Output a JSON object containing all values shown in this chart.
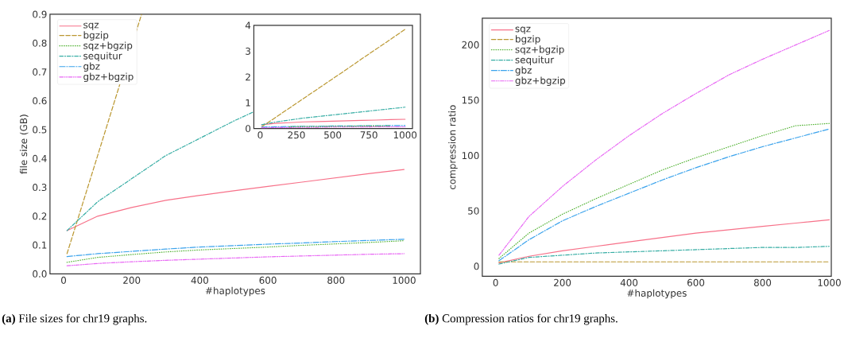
{
  "chart_data": [
    {
      "type": "line",
      "xlabel": "#haplotypes",
      "ylabel": "file size (GB)",
      "x": [
        10,
        100,
        200,
        300,
        400,
        500,
        600,
        700,
        800,
        900,
        1000
      ],
      "xlim": [
        -40,
        1048
      ],
      "ylim": [
        0,
        0.9
      ],
      "xticks": [
        0,
        200,
        400,
        600,
        800,
        1000
      ],
      "yticks": [
        {
          "value": 0,
          "label": "0.0"
        },
        0.1,
        0.2,
        0.3,
        0.4,
        0.5,
        0.6,
        0.7,
        0.8,
        0.9
      ],
      "legend": "top left",
      "grid": false,
      "annotations": [
        "**(a)** File sizes for chr19 graphs."
      ],
      "series": [
        {
          "name": "sqz",
          "color": "#f77189",
          "line_style": "solid",
          "values": [
            0.15,
            0.2,
            0.23,
            0.255,
            0.272,
            0.288,
            0.303,
            0.318,
            0.333,
            0.348,
            0.362
          ]
        },
        {
          "name": "bgzip",
          "color": "#bb9832",
          "line_style": "dashed",
          "x": [
            10,
            100,
            229
          ],
          "values": [
            0.07,
            0.41,
            0.9
          ]
        },
        {
          "name": "sqz+bgzip",
          "color": "#50b131",
          "line_style": "dotted",
          "values": [
            0.04,
            0.057,
            0.067,
            0.076,
            0.083,
            0.088,
            0.093,
            0.099,
            0.104,
            0.109,
            0.115
          ]
        },
        {
          "name": "sequitur",
          "color": "#36ada4",
          "line_style": "dashdot",
          "x": [
            10,
            100,
            200,
            300,
            400,
            500,
            555
          ],
          "values": [
            0.15,
            0.25,
            0.33,
            0.41,
            0.47,
            0.53,
            0.56
          ]
        },
        {
          "name": "gbz",
          "color": "#3ba3ec",
          "line_style": "longdashdot",
          "values": [
            0.06,
            0.07,
            0.078,
            0.086,
            0.093,
            0.098,
            0.103,
            0.107,
            0.112,
            0.116,
            0.12
          ]
        },
        {
          "name": "gbz+bgzip",
          "color": "#e866f4",
          "line_style": "dashdotdot",
          "values": [
            0.028,
            0.036,
            0.042,
            0.047,
            0.051,
            0.055,
            0.059,
            0.062,
            0.065,
            0.068,
            0.07
          ]
        }
      ]
    },
    {
      "type": "line",
      "x": [
        10,
        100,
        200,
        300,
        400,
        500,
        600,
        700,
        800,
        900,
        1000
      ],
      "xlim": [
        -44,
        1051
      ],
      "ylim": [
        0,
        4
      ],
      "xticks": [
        0,
        250,
        500,
        750,
        1000
      ],
      "yticks": [
        0,
        1,
        2,
        3,
        4
      ],
      "grid": false,
      "series": [
        {
          "color": "#f77189",
          "line_style": "solid",
          "values": [
            0.15,
            0.2,
            0.23,
            0.26,
            0.27,
            0.29,
            0.3,
            0.32,
            0.33,
            0.35,
            0.36
          ]
        },
        {
          "color": "#bb9832",
          "line_style": "dashed",
          "values": [
            0.07,
            0.41,
            0.79,
            1.17,
            1.55,
            1.93,
            2.31,
            2.7,
            3.08,
            3.46,
            3.85
          ]
        },
        {
          "color": "#50b131",
          "line_style": "dotted",
          "values": [
            null,
            null,
            0.07,
            0.08,
            0.08,
            0.09,
            0.09,
            0.1,
            0.1,
            0.11,
            null
          ]
        },
        {
          "color": "#36ada4",
          "line_style": "dashdot",
          "values": [
            0.15,
            0.25,
            0.33,
            0.41,
            0.47,
            0.53,
            0.59,
            0.65,
            0.71,
            0.77,
            0.83
          ]
        },
        {
          "color": "#3ba3ec",
          "line_style": "longdashdot",
          "values": [
            0.06,
            0.07,
            0.08,
            0.09,
            0.09,
            0.1,
            0.1,
            0.11,
            0.11,
            0.12,
            0.12
          ]
        },
        {
          "color": "#e866f4",
          "line_style": "dashdotdot",
          "values": [
            0.03,
            0.04,
            0.04,
            0.05,
            0.05,
            0.06,
            0.06,
            0.06,
            0.07,
            0.07,
            0.07
          ]
        }
      ]
    },
    {
      "type": "line",
      "xlabel": "#haplotypes",
      "ylabel": "compression ratio",
      "x": [
        10,
        100,
        200,
        300,
        400,
        500,
        600,
        700,
        800,
        900,
        1000
      ],
      "xlim": [
        -40,
        1006
      ],
      "ylim": [
        -9,
        224
      ],
      "xticks": [
        0,
        200,
        400,
        600,
        800,
        1000
      ],
      "yticks": [
        0,
        50,
        100,
        150,
        200
      ],
      "legend": "top left",
      "grid": false,
      "annotations": [
        "**(b)** Compression ratios for chr19 graphs."
      ],
      "series": [
        {
          "name": "sqz",
          "color": "#f77189",
          "line_style": "solid",
          "values": [
            3,
            9,
            14,
            18,
            22,
            26,
            30,
            33,
            36,
            39,
            42
          ]
        },
        {
          "name": "bgzip",
          "color": "#bb9832",
          "line_style": "dashed",
          "values": [
            4,
            4,
            4,
            4,
            4,
            4,
            4,
            4,
            4,
            4,
            4
          ]
        },
        {
          "name": "sqz+bgzip",
          "color": "#50b131",
          "line_style": "dotted",
          "values": [
            7,
            30,
            47,
            61,
            74,
            87,
            98,
            108,
            118,
            127,
            129
          ]
        },
        {
          "name": "sequitur",
          "color": "#36ada4",
          "line_style": "dashdot",
          "values": [
            2,
            8,
            10,
            12,
            13,
            14,
            15,
            16,
            17,
            17,
            18
          ]
        },
        {
          "name": "gbz",
          "color": "#3ba3ec",
          "line_style": "longdashdot",
          "values": [
            5,
            24,
            41,
            54,
            66,
            78,
            89,
            99,
            108,
            116,
            124
          ]
        },
        {
          "name": "gbz+bgzip",
          "color": "#e866f4",
          "line_style": "dashdotdot",
          "values": [
            10,
            45,
            72,
            96,
            118,
            138,
            156,
            173,
            187,
            200,
            213
          ]
        }
      ]
    }
  ]
}
